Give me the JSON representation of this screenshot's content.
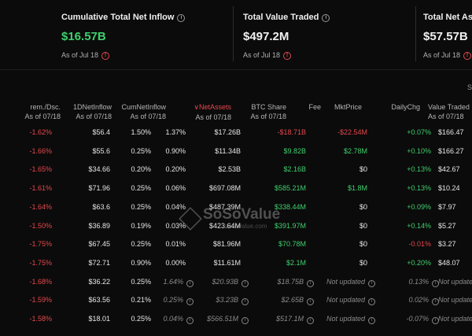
{
  "cards": [
    {
      "title": "Cumulative Total Net Inflow",
      "value": "$16.57B",
      "value_color": "#3fcf6d",
      "date": "As of Jul 18"
    },
    {
      "title": "Total Value Traded",
      "value": "$497.2M",
      "value_color": "#f0f0f0",
      "date": "As of Jul 18"
    },
    {
      "title": "Total Net Ass",
      "value": "$57.57B",
      "value_color": "#f0f0f0",
      "date": "As of Jul 18"
    }
  ],
  "corner_label": "S",
  "columns": [
    {
      "l1": "rem./Dsc.",
      "l2": "As of 07/18"
    },
    {
      "l1": "1DNetInflow",
      "l2": "As of 07/18"
    },
    {
      "l1": "CumNetInflow",
      "l2": "As of 07/18"
    },
    {
      "l1": "NetAssets",
      "l2": "As of 07/18",
      "sorted": true
    },
    {
      "l1": "BTC Share",
      "l2": "As of 07/18"
    },
    {
      "l1": "Fee",
      "l2": ""
    },
    {
      "l1": "MktPrice",
      "l2": ""
    },
    {
      "l1": "DailyChg",
      "l2": ""
    },
    {
      "l1": "Value Traded",
      "l2": "As of 07/18"
    }
  ],
  "rows": [
    {
      "prem": "+0.07%",
      "d1": "-$22.54M",
      "cum": "-$18.71B",
      "net": "$17.26B",
      "share": "1.37%",
      "fee": "1.50%",
      "price": "$56.4",
      "chg": "-1.62%",
      "traded": "$166.47",
      "tone": [
        "green",
        "red",
        "red",
        "norm"
      ]
    },
    {
      "prem": "+0.10%",
      "d1": "$2.78M",
      "cum": "$9.82B",
      "net": "$11.34B",
      "share": "0.90%",
      "fee": "0.25%",
      "price": "$55.6",
      "chg": "-1.66%",
      "traded": "$166.27",
      "tone": [
        "green",
        "green",
        "green",
        "norm"
      ]
    },
    {
      "prem": "+0.13%",
      "d1": "$0",
      "cum": "$2.16B",
      "net": "$2.53B",
      "share": "0.20%",
      "fee": "0.20%",
      "price": "$34.66",
      "chg": "-1.65%",
      "traded": "$42.67",
      "tone": [
        "green",
        "norm",
        "green",
        "norm"
      ]
    },
    {
      "prem": "+0.13%",
      "d1": "$1.8M",
      "cum": "$585.21M",
      "net": "$697.08M",
      "share": "0.06%",
      "fee": "0.25%",
      "price": "$71.96",
      "chg": "-1.61%",
      "traded": "$10.24",
      "tone": [
        "green",
        "green",
        "green",
        "norm"
      ]
    },
    {
      "prem": "+0.09%",
      "d1": "$0",
      "cum": "$338.44M",
      "net": "$487.39M",
      "share": "0.04%",
      "fee": "0.25%",
      "price": "$63.6",
      "chg": "-1.64%",
      "traded": "$7.97",
      "tone": [
        "green",
        "norm",
        "green",
        "norm"
      ]
    },
    {
      "prem": "+0.14%",
      "d1": "$0",
      "cum": "$391.97M",
      "net": "$423.64M",
      "share": "0.03%",
      "fee": "0.19%",
      "price": "$36.89",
      "chg": "-1.50%",
      "traded": "$5.27",
      "tone": [
        "green",
        "norm",
        "green",
        "norm"
      ]
    },
    {
      "prem": "-0.01%",
      "d1": "$0",
      "cum": "$70.78M",
      "net": "$81.96M",
      "share": "0.01%",
      "fee": "0.25%",
      "price": "$67.45",
      "chg": "-1.75%",
      "traded": "$3.27",
      "tone": [
        "red",
        "norm",
        "green",
        "norm"
      ]
    },
    {
      "prem": "+0.20%",
      "d1": "$0",
      "cum": "$2.1M",
      "net": "$11.61M",
      "share": "0.00%",
      "fee": "0.90%",
      "price": "$72.71",
      "chg": "-1.75%",
      "traded": "$48.07",
      "tone": [
        "green",
        "norm",
        "green",
        "norm"
      ]
    },
    {
      "prem": "0.13%",
      "d1": "Not updated",
      "cum": "$18.75B",
      "net": "$20.93B",
      "share": "1.64%",
      "fee": "0.25%",
      "price": "$36.22",
      "chg": "-1.68%",
      "traded": "Not update",
      "stale": true
    },
    {
      "prem": "0.02%",
      "d1": "Not updated",
      "cum": "$2.65B",
      "net": "$3.23B",
      "share": "0.25%",
      "fee": "0.21%",
      "price": "$63.56",
      "chg": "-1.59%",
      "traded": "Not update",
      "stale": true
    },
    {
      "prem": "-0.07%",
      "d1": "Not updated",
      "cum": "$517.1M",
      "net": "$566.51M",
      "share": "0.04%",
      "fee": "0.25%",
      "price": "$18.01",
      "chg": "-1.58%",
      "traded": "Not update",
      "stale": true
    }
  ],
  "watermark": {
    "brand": "SoSoValue",
    "sub": "sosovalue.com"
  },
  "colors": {
    "positive": "#3fcf6d",
    "negative": "#e5484d",
    "background": "#0b0b0b"
  }
}
